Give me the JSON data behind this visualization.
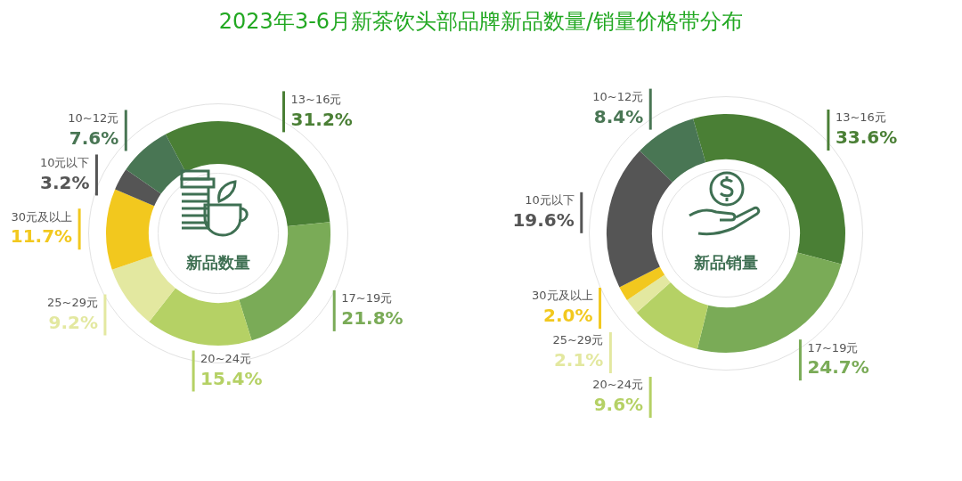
{
  "chart_data": [
    {
      "type": "donut",
      "title": "2023年3-6月新茶饮头部品牌新品数量/销量价格带分布",
      "annotations": [
        "新品数量"
      ],
      "categories": [
        "13~16元",
        "17~19元",
        "20~24元",
        "25~29元",
        "30元及以上",
        "10元以下",
        "10~12元"
      ],
      "values": [
        31.2,
        21.8,
        15.4,
        9.2,
        11.7,
        3.2,
        7.6
      ],
      "value_labels": [
        "31.2%",
        "21.8%",
        "15.4%",
        "9.2%",
        "11.7%",
        "3.2%",
        "7.6%"
      ],
      "colors": [
        "#4a7f35",
        "#7aab57",
        "#b5d165",
        "#e3e8a0",
        "#f2c81e",
        "#555555",
        "#497654"
      ],
      "legend": false
    },
    {
      "type": "donut",
      "annotations": [
        "新品销量"
      ],
      "categories": [
        "13~16元",
        "17~19元",
        "20~24元",
        "25~29元",
        "30元及以上",
        "10元以下",
        "10~12元"
      ],
      "values": [
        33.6,
        24.7,
        9.6,
        2.1,
        2.0,
        19.6,
        8.4
      ],
      "value_labels": [
        "33.6%",
        "24.7%",
        "9.6%",
        "2.1%",
        "2.0%",
        "19.6%",
        "8.4%"
      ],
      "colors": [
        "#4a7f35",
        "#7aab57",
        "#b5d165",
        "#e3e8a0",
        "#f2c81e",
        "#555555",
        "#497654"
      ],
      "legend": false
    }
  ]
}
